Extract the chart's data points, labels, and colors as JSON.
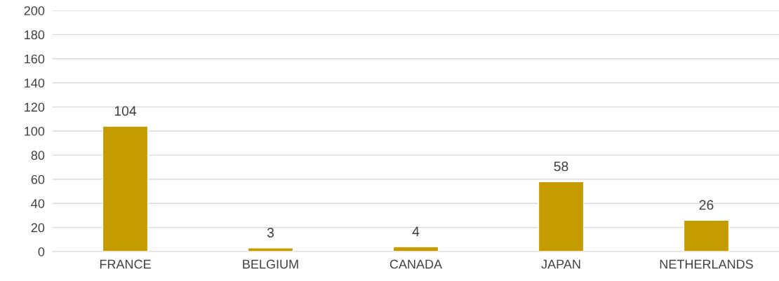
{
  "chart_data": {
    "type": "bar",
    "categories": [
      "FRANCE",
      "BELGIUM",
      "CANADA",
      "JAPAN",
      "NETHERLANDS"
    ],
    "values": [
      104,
      3,
      4,
      58,
      26
    ],
    "color": "#c49c00",
    "ylim": [
      0,
      200
    ],
    "yticks": [
      0,
      20,
      40,
      60,
      80,
      100,
      120,
      140,
      160,
      180,
      200
    ],
    "grid": "y",
    "data_labels": true
  }
}
